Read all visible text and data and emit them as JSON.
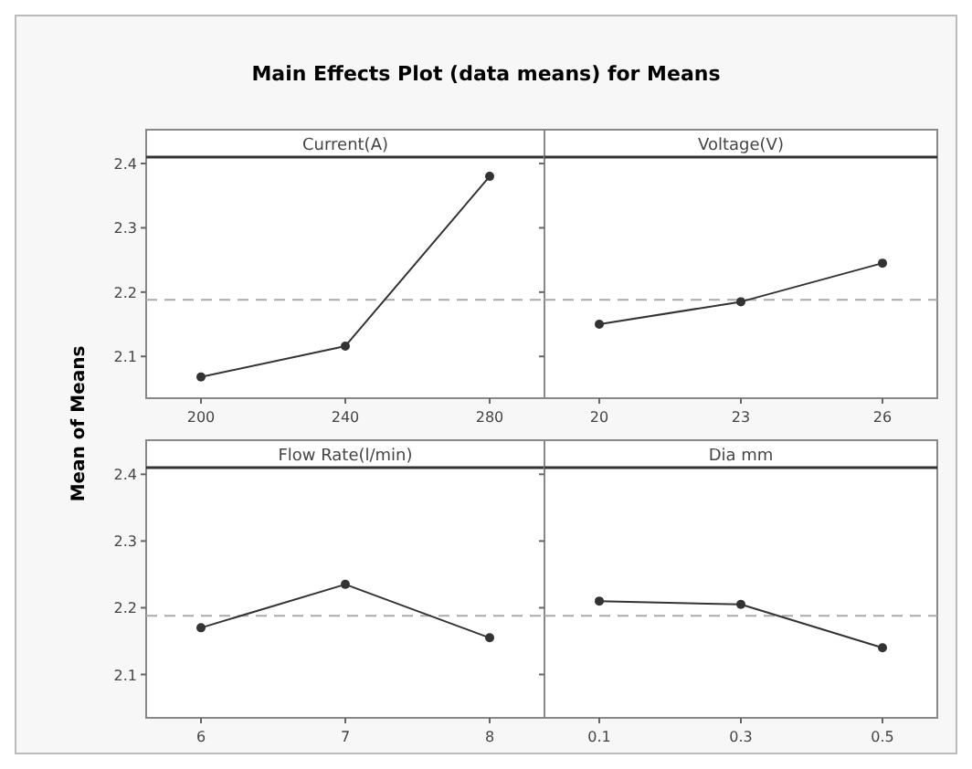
{
  "chart_data": [
    {
      "type": "line",
      "title": "Main Effects Plot (data means) for Means",
      "ylabel": "Mean of Means",
      "xlabel": "Current(A)",
      "categories": [
        "200",
        "240",
        "280"
      ],
      "series": [
        {
          "color": "#333333",
          "values": [
            2.068,
            2.116,
            2.38
          ]
        }
      ],
      "ylim": [
        2.035,
        2.41
      ],
      "yticks": [
        2.1,
        2.2,
        2.3,
        2.4
      ],
      "ref_lines": [
        {
          "axis": "y",
          "value": 2.188,
          "color": "#aaaaaa",
          "line_style": "dashed"
        }
      ],
      "marker": "circle",
      "grid": false
    },
    {
      "type": "line",
      "xlabel": "Voltage(V)",
      "categories": [
        "20",
        "23",
        "26"
      ],
      "series": [
        {
          "color": "#333333",
          "values": [
            2.15,
            2.185,
            2.245
          ]
        }
      ],
      "ylim": [
        2.035,
        2.41
      ],
      "yticks": [
        2.1,
        2.2,
        2.3,
        2.4
      ],
      "tick_labels": "x",
      "ref_lines": [
        {
          "axis": "y",
          "value": 2.188,
          "color": "#aaaaaa",
          "line_style": "dashed"
        }
      ],
      "marker": "circle",
      "grid": false
    },
    {
      "type": "line",
      "xlabel": "Flow Rate(l/min)",
      "categories": [
        "6",
        "7",
        "8"
      ],
      "series": [
        {
          "color": "#333333",
          "values": [
            2.17,
            2.235,
            2.155
          ]
        }
      ],
      "ylim": [
        2.035,
        2.41
      ],
      "yticks": [
        2.1,
        2.2,
        2.3,
        2.4
      ],
      "ref_lines": [
        {
          "axis": "y",
          "value": 2.188,
          "color": "#aaaaaa",
          "line_style": "dashed"
        }
      ],
      "marker": "circle",
      "grid": false
    },
    {
      "type": "line",
      "xlabel": "Dia mm",
      "categories": [
        "0.1",
        "0.3",
        "0.5"
      ],
      "series": [
        {
          "color": "#333333",
          "values": [
            2.21,
            2.205,
            2.14
          ]
        }
      ],
      "ylim": [
        2.035,
        2.41
      ],
      "yticks": [
        2.1,
        2.2,
        2.3,
        2.4
      ],
      "tick_labels": "x",
      "ref_lines": [
        {
          "axis": "y",
          "value": 2.188,
          "color": "#aaaaaa",
          "line_style": "dashed"
        }
      ],
      "marker": "circle",
      "grid": false
    }
  ]
}
